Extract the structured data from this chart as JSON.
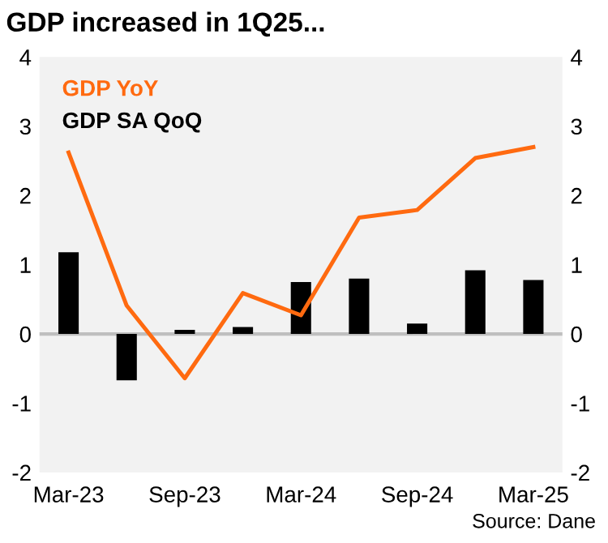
{
  "chart_data": {
    "type": "bar",
    "title": "GDP increased in 1Q25...",
    "categories": [
      "Mar-23",
      null,
      "Sep-23",
      null,
      "Mar-24",
      null,
      "Sep-24",
      null,
      "Mar-25"
    ],
    "series": [
      {
        "name": "GDP YoY",
        "type": "line",
        "color": "#ff6a10",
        "values": [
          2.62,
          0.41,
          -0.64,
          0.59,
          0.27,
          1.68,
          1.79,
          2.54,
          2.7
        ]
      },
      {
        "name": "GDP SA QoQ",
        "color": "#000000",
        "values": [
          1.18,
          -0.67,
          0.06,
          0.1,
          0.75,
          0.8,
          0.15,
          0.92,
          0.78
        ]
      }
    ],
    "ylim": [
      -2,
      4
    ],
    "yticks": [
      -2,
      -1,
      0,
      1,
      2,
      3,
      4
    ],
    "y2lim": [
      -2,
      4
    ],
    "y2ticks": [
      -2,
      -1,
      0,
      1,
      2,
      3,
      4
    ],
    "ref_lines": [
      {
        "axis": "y",
        "value": 0,
        "color": "#bfbfbf"
      }
    ],
    "legend": "top left",
    "grid": false,
    "annotations": [
      "Source: Dane"
    ]
  }
}
